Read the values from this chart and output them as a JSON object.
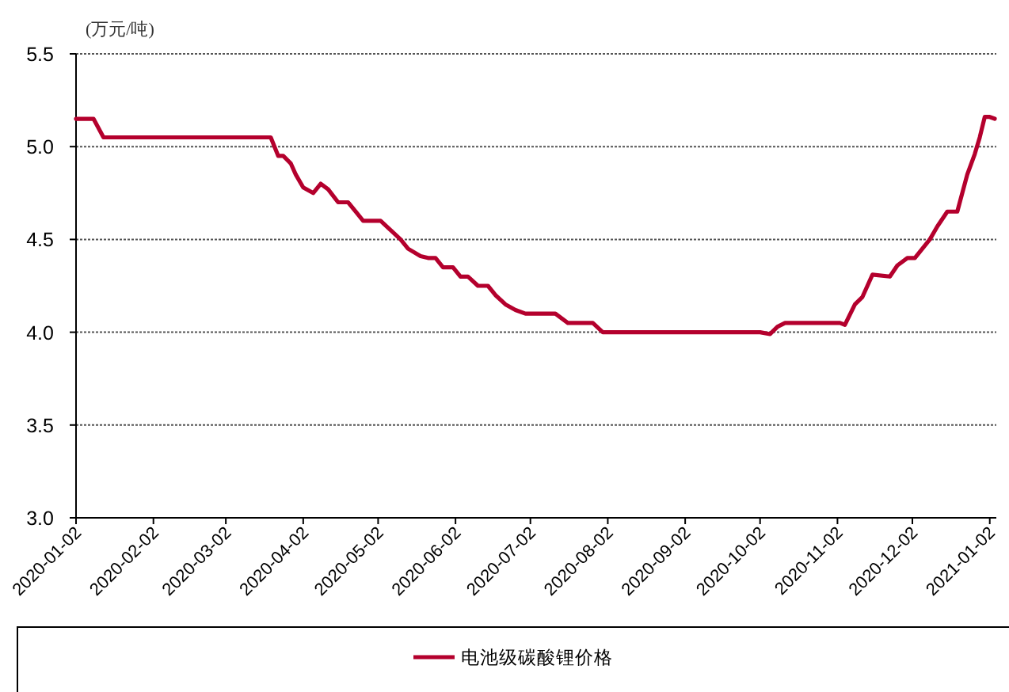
{
  "chart_data": {
    "type": "line",
    "ylabel": "(万元/吨)",
    "x": [
      "2020-01-02",
      "2020-01-09",
      "2020-01-13",
      "2020-03-20",
      "2020-03-23",
      "2020-03-25",
      "2020-03-28",
      "2020-03-30",
      "2020-04-02",
      "2020-04-06",
      "2020-04-09",
      "2020-04-12",
      "2020-04-16",
      "2020-04-20",
      "2020-04-23",
      "2020-04-26",
      "2020-05-03",
      "2020-05-07",
      "2020-05-11",
      "2020-05-14",
      "2020-05-19",
      "2020-05-22",
      "2020-05-25",
      "2020-05-28",
      "2020-06-01",
      "2020-06-04",
      "2020-06-07",
      "2020-06-11",
      "2020-06-15",
      "2020-06-18",
      "2020-06-22",
      "2020-06-26",
      "2020-06-30",
      "2020-07-12",
      "2020-07-17",
      "2020-07-27",
      "2020-07-31",
      "2020-10-02",
      "2020-10-06",
      "2020-10-09",
      "2020-10-12",
      "2020-11-03",
      "2020-11-05",
      "2020-11-09",
      "2020-11-12",
      "2020-11-16",
      "2020-11-23",
      "2020-11-26",
      "2020-11-30",
      "2020-12-03",
      "2020-12-06",
      "2020-12-09",
      "2020-12-12",
      "2020-12-16",
      "2020-12-20",
      "2020-12-21",
      "2020-12-24",
      "2020-12-27",
      "2020-12-29",
      "2020-12-31",
      "2021-01-02",
      "2021-01-04"
    ],
    "series": [
      {
        "name": "电池级碳酸锂价格",
        "color": "#b4002d",
        "values": [
          5.15,
          5.15,
          5.05,
          5.05,
          4.95,
          4.95,
          4.91,
          4.85,
          4.78,
          4.75,
          4.8,
          4.77,
          4.7,
          4.7,
          4.65,
          4.6,
          4.6,
          4.55,
          4.5,
          4.45,
          4.41,
          4.4,
          4.4,
          4.35,
          4.35,
          4.3,
          4.3,
          4.25,
          4.25,
          4.2,
          4.15,
          4.12,
          4.1,
          4.1,
          4.05,
          4.05,
          4.0,
          4.0,
          3.99,
          4.03,
          4.05,
          4.05,
          4.04,
          4.15,
          4.19,
          4.31,
          4.3,
          4.36,
          4.4,
          4.4,
          4.45,
          4.5,
          4.57,
          4.65,
          4.65,
          4.7,
          4.85,
          4.96,
          5.05,
          5.16,
          5.16,
          5.15
        ]
      }
    ],
    "xlim": [
      "2020-01-02",
      "2021-01-04"
    ],
    "xticks": [
      "2020-01-02",
      "2020-02-02",
      "2020-03-02",
      "2020-04-02",
      "2020-05-02",
      "2020-06-02",
      "2020-07-02",
      "2020-08-02",
      "2020-09-02",
      "2020-10-02",
      "2020-11-02",
      "2020-12-02",
      "2021-01-02"
    ],
    "ylim": [
      3,
      5.5
    ],
    "yticks": [
      {
        "value": 3,
        "label": "3.0"
      },
      3.5,
      {
        "value": 4,
        "label": "4.0"
      },
      4.5,
      {
        "value": 5,
        "label": "5.0"
      },
      5.5
    ],
    "grid": "y",
    "legend": "bottom",
    "line_style": "solid"
  }
}
